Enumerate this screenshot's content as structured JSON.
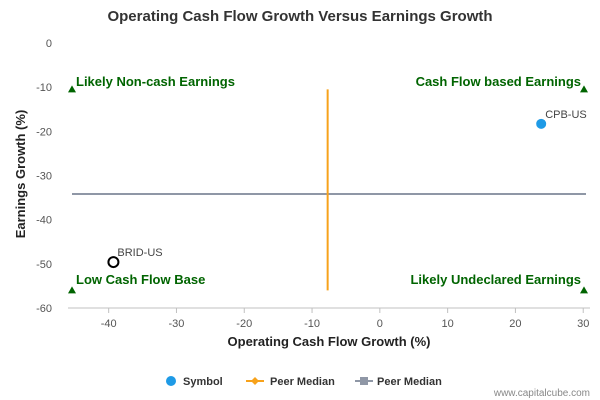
{
  "chart_data": {
    "type": "scatter",
    "title": "Operating Cash Flow Growth Versus Earnings Growth",
    "xlabel": "Operating Cash Flow Growth (%)",
    "ylabel": "Earnings Growth (%)",
    "xlim": [
      -46,
      31
    ],
    "ylim": [
      -60,
      0
    ],
    "x_ticks": [
      "-40",
      "-30",
      "-20",
      "-10",
      "0",
      "10",
      "20",
      "30"
    ],
    "x_tick_values": [
      -40,
      -30,
      -20,
      -10,
      0,
      10,
      20,
      30
    ],
    "y_ticks": [
      "0",
      "-10",
      "-20",
      "-30",
      "-40",
      "-50",
      "-60"
    ],
    "y_tick_values": [
      0,
      -10,
      -20,
      -30,
      -40,
      -50,
      -60
    ],
    "points": [
      {
        "label": "CPB-US",
        "x": 23.8,
        "y": -18.3,
        "style": "filled",
        "color": "#1e9ae6"
      },
      {
        "label": "BRID-US",
        "x": -39.3,
        "y": -49.6,
        "style": "hollow",
        "color": "#000000"
      }
    ],
    "peer_median_x": -7.7,
    "peer_median_y": -34.2,
    "quadrants": {
      "top_left": "Likely Non-cash Earnings",
      "top_right": "Cash Flow based Earnings",
      "bottom_left": "Low Cash Flow Base",
      "bottom_right": "Likely Undeclared Earnings"
    },
    "legend": [
      {
        "label": "Symbol",
        "color": "#1e9ae6"
      },
      {
        "label": "Peer Median",
        "color": "#f7a21b"
      },
      {
        "label": "Peer Median",
        "color": "#8f97a6"
      }
    ],
    "credit": "www.capitalcube.com",
    "colors": {
      "vertical_median": "#f7a21b",
      "horizontal_median": "#8f97a6",
      "quadrant_text": "#006400",
      "marker": "#006400"
    }
  }
}
